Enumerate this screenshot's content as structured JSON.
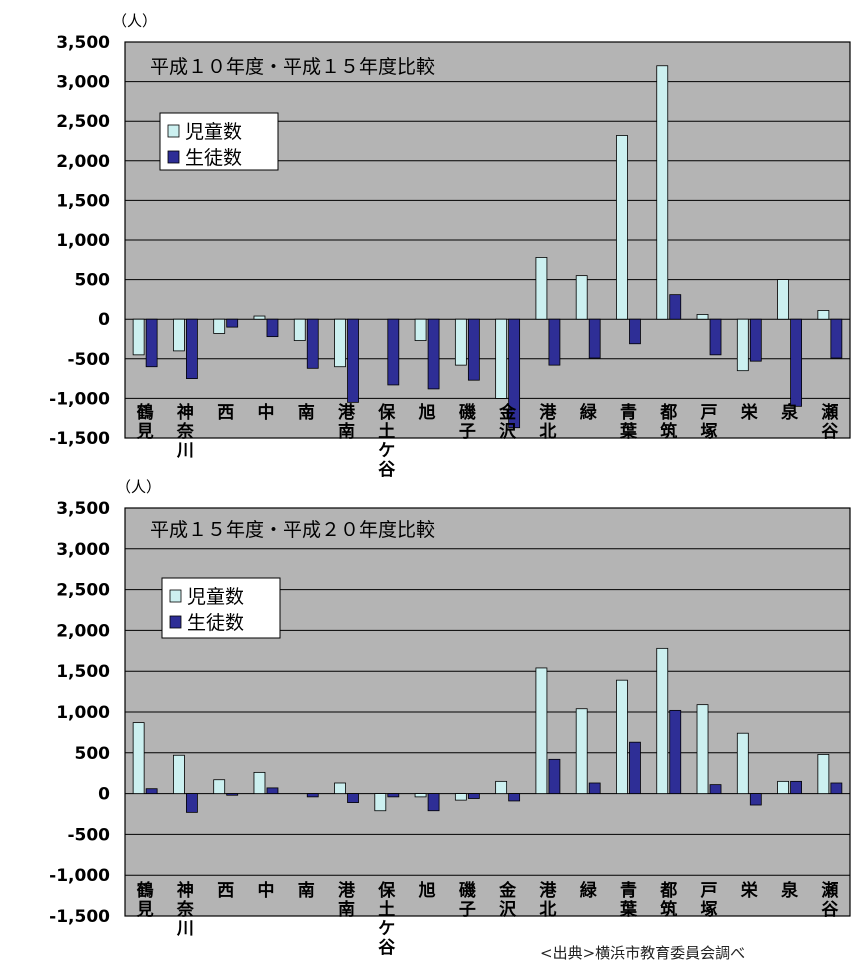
{
  "source_note": "<出典>横浜市教育委員会調べ",
  "chart_data": [
    {
      "type": "bar",
      "title": "平成１０年度・平成１５年度比較",
      "unit_label": "（人）",
      "ylim": [
        -1500,
        3500
      ],
      "yticks": [
        3500,
        3000,
        2500,
        2000,
        1500,
        1000,
        500,
        0,
        -500,
        -1000,
        -1500
      ],
      "ytick_labels": [
        "3,500",
        "3,000",
        "2,500",
        "2,000",
        "1,500",
        "1,000",
        "500",
        "0",
        "-500",
        "-1,000",
        "-1,500"
      ],
      "grid": true,
      "legend_position": "top-left",
      "categories": [
        "鶴見",
        "神奈川",
        "西",
        "中",
        "南",
        "港南",
        "保土ケ谷",
        "旭",
        "磯子",
        "金沢",
        "港北",
        "緑",
        "青葉",
        "都筑",
        "戸塚",
        "栄",
        "泉",
        "瀬谷"
      ],
      "series": [
        {
          "name": "児童数",
          "color": "#ccf0f0",
          "values": [
            -450,
            -400,
            -180,
            40,
            -270,
            -600,
            0,
            -270,
            -580,
            -1000,
            780,
            550,
            2320,
            3200,
            60,
            -650,
            500,
            110
          ]
        },
        {
          "name": "生徒数",
          "color": "#2e2e96",
          "values": [
            -600,
            -750,
            -100,
            -220,
            -620,
            -1050,
            -830,
            -880,
            -770,
            -1370,
            -580,
            -490,
            -310,
            310,
            -450,
            -530,
            -1100,
            -490
          ]
        }
      ]
    },
    {
      "type": "bar",
      "title": "平成１５年度・平成２０年度比較",
      "unit_label": "（人）",
      "ylim": [
        -1500,
        3500
      ],
      "yticks": [
        3500,
        3000,
        2500,
        2000,
        1500,
        1000,
        500,
        0,
        -500,
        -1000,
        -1500
      ],
      "ytick_labels": [
        "3,500",
        "3,000",
        "2,500",
        "2,000",
        "1,500",
        "1,000",
        "500",
        "0",
        "-500",
        "-1,000",
        "-1,500"
      ],
      "grid": true,
      "legend_position": "top-left",
      "categories": [
        "鶴見",
        "神奈川",
        "西",
        "中",
        "南",
        "港南",
        "保土ケ谷",
        "旭",
        "磯子",
        "金沢",
        "港北",
        "緑",
        "青葉",
        "都筑",
        "戸塚",
        "栄",
        "泉",
        "瀬谷"
      ],
      "series": [
        {
          "name": "児童数",
          "color": "#ccf0f0",
          "values": [
            870,
            470,
            170,
            260,
            0,
            130,
            -210,
            -40,
            -80,
            150,
            1540,
            1040,
            1390,
            1780,
            1090,
            740,
            150,
            480
          ]
        },
        {
          "name": "生徒数",
          "color": "#2e2e96",
          "values": [
            60,
            -230,
            -20,
            70,
            -40,
            -110,
            -40,
            -210,
            -60,
            -90,
            420,
            130,
            630,
            1020,
            110,
            -140,
            150,
            130
          ]
        }
      ]
    }
  ]
}
